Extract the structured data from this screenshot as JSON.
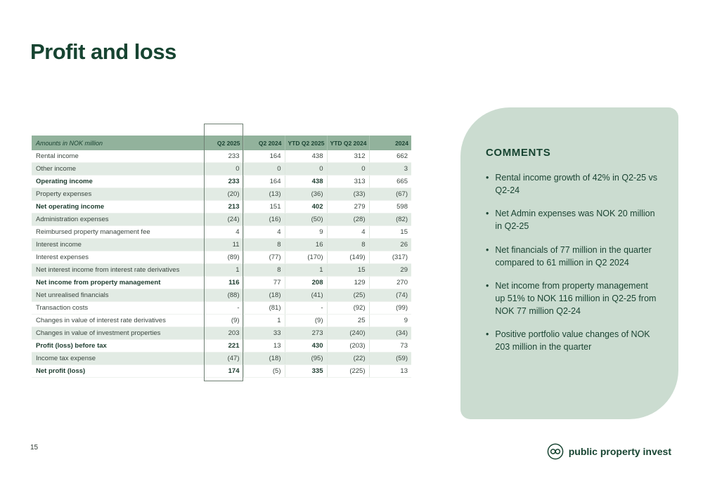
{
  "page": {
    "title": "Profit and loss",
    "page_number": "15"
  },
  "table": {
    "amounts_label": "Amounts in NOK million",
    "columns": [
      "Q2 2025",
      "Q2 2024",
      "YTD Q2 2025",
      "YTD Q2 2024",
      "2024"
    ],
    "rows": [
      {
        "label": "Rental income",
        "values": [
          "233",
          "164",
          "438",
          "312",
          "662"
        ],
        "bold": false,
        "shaded": false
      },
      {
        "label": "Other income",
        "values": [
          "0",
          "0",
          "0",
          "0",
          "3"
        ],
        "bold": false,
        "shaded": true
      },
      {
        "label": "Operating income",
        "values": [
          "233",
          "164",
          "438",
          "313",
          "665"
        ],
        "bold": true,
        "shaded": false
      },
      {
        "label": "Property expenses",
        "values": [
          "(20)",
          "(13)",
          "(36)",
          "(33)",
          "(67)"
        ],
        "bold": false,
        "shaded": true
      },
      {
        "label": "Net operating income",
        "values": [
          "213",
          "151",
          "402",
          "279",
          "598"
        ],
        "bold": true,
        "shaded": false
      },
      {
        "label": "Administration expenses",
        "values": [
          "(24)",
          "(16)",
          "(50)",
          "(28)",
          "(82)"
        ],
        "bold": false,
        "shaded": true
      },
      {
        "label": "Reimbursed property management fee",
        "values": [
          "4",
          "4",
          "9",
          "4",
          "15"
        ],
        "bold": false,
        "shaded": false
      },
      {
        "label": "Interest income",
        "values": [
          "11",
          "8",
          "16",
          "8",
          "26"
        ],
        "bold": false,
        "shaded": true
      },
      {
        "label": "Interest expenses",
        "values": [
          "(89)",
          "(77)",
          "(170)",
          "(149)",
          "(317)"
        ],
        "bold": false,
        "shaded": false
      },
      {
        "label": "Net interest income from interest rate derivatives",
        "values": [
          "1",
          "8",
          "1",
          "15",
          "29"
        ],
        "bold": false,
        "shaded": true
      },
      {
        "label": "Net income from property management",
        "values": [
          "116",
          "77",
          "208",
          "129",
          "270"
        ],
        "bold": true,
        "shaded": false
      },
      {
        "label": "Net unrealised financials",
        "values": [
          "(88)",
          "(18)",
          "(41)",
          "(25)",
          "(74)"
        ],
        "bold": false,
        "shaded": true
      },
      {
        "label": "Transaction costs",
        "values": [
          "-",
          "(81)",
          "-",
          "(92)",
          "(99)"
        ],
        "bold": false,
        "shaded": false
      },
      {
        "label": "Changes in value of interest rate derivatives",
        "values": [
          "(9)",
          "1",
          "(9)",
          "25",
          "9"
        ],
        "bold": false,
        "shaded": false
      },
      {
        "label": "Changes in value of investment properties",
        "values": [
          "203",
          "33",
          "273",
          "(240)",
          "(34)"
        ],
        "bold": false,
        "shaded": true
      },
      {
        "label": "Profit (loss) before tax",
        "values": [
          "221",
          "13",
          "430",
          "(203)",
          "73"
        ],
        "bold": true,
        "shaded": false
      },
      {
        "label": "Income tax expense",
        "values": [
          "(47)",
          "(18)",
          "(95)",
          "(22)",
          "(59)"
        ],
        "bold": false,
        "shaded": true
      },
      {
        "label": "Net profit (loss)",
        "values": [
          "174",
          "(5)",
          "335",
          "(225)",
          "13"
        ],
        "bold": true,
        "shaded": false
      }
    ]
  },
  "comments": {
    "title": "COMMENTS",
    "items": [
      "Rental income growth of 42% in Q2-25 vs Q2-24",
      "Net Admin expenses was NOK 20 million in Q2-25",
      "Net financials of 77 million in the quarter compared to 61 million in Q2 2024",
      "Net income from property management up 51% to NOK 116 million in Q2-25 from NOK 77 million Q2-24",
      "Positive portfolio value changes of NOK 203 million in the quarter"
    ]
  },
  "footer": {
    "brand": "public property invest"
  },
  "colors": {
    "dark_green": "#174431",
    "header_green": "#92b29c",
    "row_green": "#e2ebe4",
    "panel_green": "#cbdcd0"
  }
}
